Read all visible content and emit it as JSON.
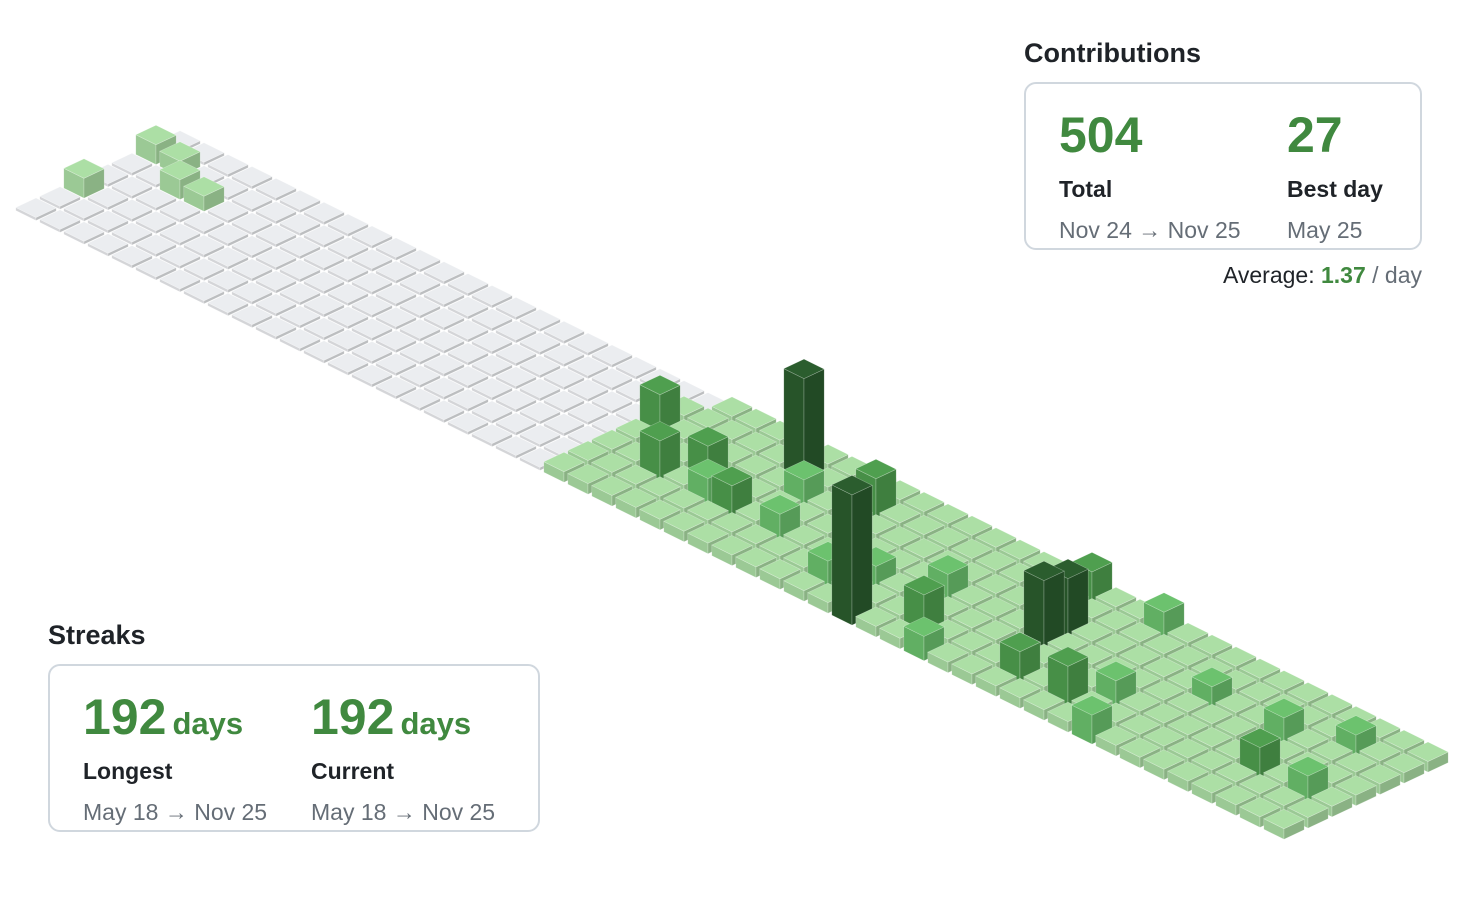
{
  "colors": {
    "empty": "#ebedf0",
    "level1": "#acdfa5",
    "level2": "#6cc26e",
    "level3": "#4f9f4f",
    "level4": "#2b5d2e",
    "accent": "#40893f"
  },
  "contributions": {
    "title": "Contributions",
    "total": {
      "value": "504",
      "label": "Total",
      "range": "Nov 24 → Nov 25"
    },
    "best_day": {
      "value": "27",
      "label": "Best day",
      "range": "May 25"
    },
    "average": {
      "prefix": "Average:",
      "value": "1.37",
      "suffix": "/ day"
    }
  },
  "streaks": {
    "title": "Streaks",
    "longest": {
      "value": "192",
      "unit": "days",
      "label": "Longest",
      "range": "May 18 → Nov 25"
    },
    "current": {
      "value": "192",
      "unit": "days",
      "label": "Current",
      "range": "May 18 → Nov 25"
    }
  },
  "chart_data": {
    "type": "heatmap",
    "title": "",
    "weeks": 53,
    "days_per_week": 7,
    "cells": [
      [
        0,
        1,
        3
      ],
      [
        0,
        4,
        3
      ],
      [
        1,
        1,
        2
      ],
      [
        2,
        2,
        3
      ],
      [
        3,
        2,
        2
      ],
      [
        22,
        2,
        8
      ],
      [
        24,
        4,
        8
      ],
      [
        25,
        3,
        7
      ],
      [
        26,
        4,
        5
      ],
      [
        27,
        1,
        22
      ],
      [
        27,
        4,
        6
      ],
      [
        28,
        2,
        5
      ],
      [
        29,
        4,
        5
      ],
      [
        30,
        1,
        8
      ],
      [
        31,
        3,
        6
      ],
      [
        32,
        5,
        5
      ],
      [
        33,
        4,
        4
      ],
      [
        34,
        6,
        27
      ],
      [
        35,
        3,
        5
      ],
      [
        36,
        5,
        8
      ],
      [
        37,
        6,
        4
      ],
      [
        38,
        0,
        6
      ],
      [
        39,
        3,
        14
      ],
      [
        39,
        2,
        12
      ],
      [
        40,
        5,
        6
      ],
      [
        41,
        0,
        5
      ],
      [
        42,
        5,
        8
      ],
      [
        43,
        4,
        5
      ],
      [
        44,
        6,
        5
      ],
      [
        45,
        2,
        4
      ],
      [
        48,
        2,
        5
      ],
      [
        49,
        4,
        6
      ],
      [
        50,
        1,
        4
      ],
      [
        51,
        4,
        5
      ]
    ]
  }
}
